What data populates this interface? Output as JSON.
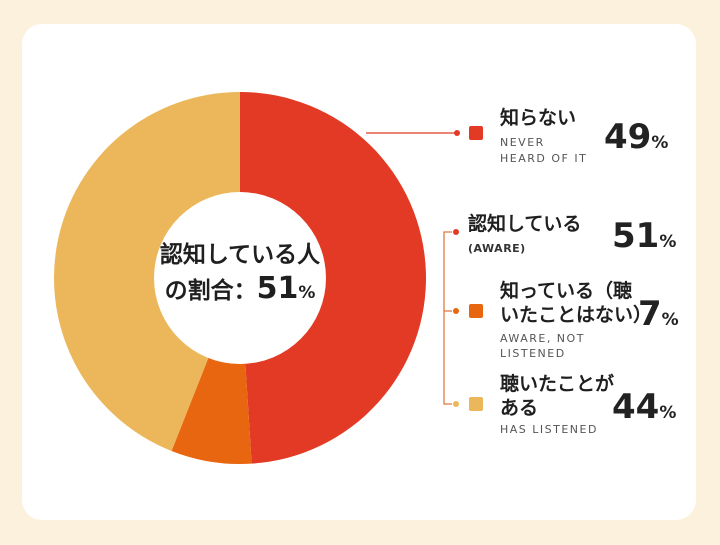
{
  "chart_data": {
    "type": "pie",
    "center_label_line1": "認知している人",
    "center_label_line2": "の割合：",
    "center_value": "51",
    "center_unit": "%",
    "slices": [
      {
        "label_jp": "知らない",
        "label_en": "NEVER HEARD OF IT",
        "value": 49,
        "color": "#e23a24"
      },
      {
        "label_jp": "知っている（聴いたことはない）",
        "label_en": "AWARE, NOT LISTENED",
        "value": 7,
        "color": "#e8660f"
      },
      {
        "label_jp": "聴いたことがある",
        "label_en": "HAS LISTENED",
        "value": 44,
        "color": "#ecb75a"
      }
    ],
    "legend": {
      "never": {
        "jp": "知らない",
        "en1": "NEVER",
        "en2": "HEARD OF IT",
        "value": "49",
        "unit": "%",
        "color": "#e23a24"
      },
      "aware": {
        "jp": "認知している",
        "en1": "(AWARE)",
        "value": "51",
        "unit": "%"
      },
      "not_listened": {
        "jp1": "知っている（聴",
        "jp2": "いたことはない）",
        "en1": "AWARE, NOT",
        "en2": "LISTENED",
        "value": "7",
        "unit": "%",
        "color": "#e8660f"
      },
      "listened": {
        "jp1": "聴いたことが",
        "jp2": "ある",
        "en1": "HAS LISTENED",
        "value": "44",
        "unit": "%",
        "color": "#ecb75a"
      }
    }
  }
}
